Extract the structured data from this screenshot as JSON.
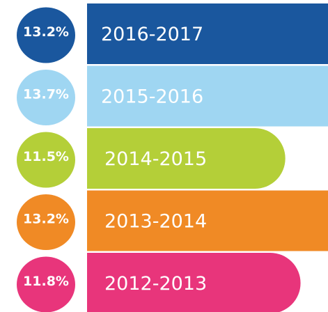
{
  "chart_data": {
    "type": "bar",
    "orientation": "horizontal",
    "categories": [
      "2016-2017",
      "2015-2016",
      "2014-2015",
      "2013-2014",
      "2012-2013"
    ],
    "values": [
      13.2,
      13.7,
      11.5,
      13.2,
      11.8
    ],
    "value_labels": [
      "13.2%",
      "13.7%",
      "11.5%",
      "13.2%",
      "11.8%"
    ],
    "colors": [
      "#1a579e",
      "#9fd6f2",
      "#b4cf38",
      "#f08a25",
      "#e8357b"
    ],
    "xlim": [
      7.6,
      12.34
    ]
  }
}
